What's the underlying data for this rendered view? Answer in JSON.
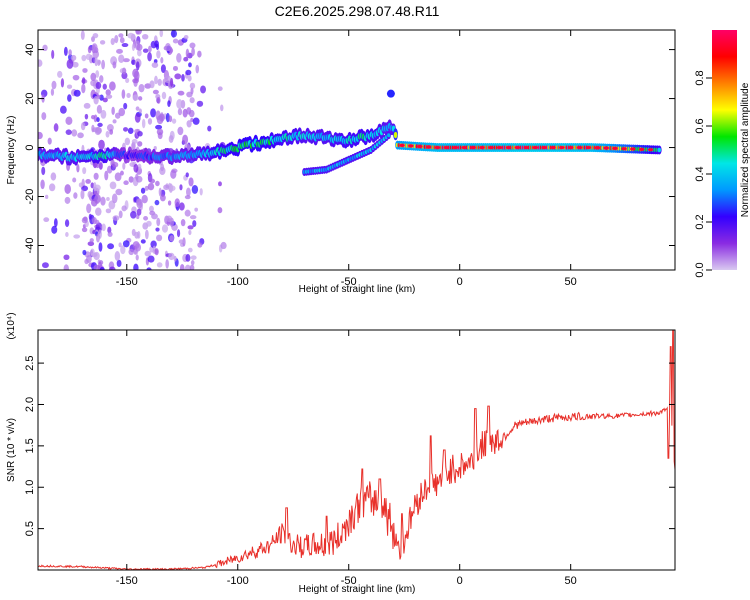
{
  "figure": {
    "title": "C2E6.2025.298.07.48.R11"
  },
  "chart_data": [
    {
      "type": "heatmap",
      "title": "C2E6.2025.298.07.48.R11",
      "xlabel": "Height of straight line (km)",
      "ylabel": "Frequency (Hz)",
      "xlim": [
        -190,
        97
      ],
      "ylim": [
        -50,
        48
      ],
      "x_ticks": [
        -150,
        -100,
        -50,
        0,
        50
      ],
      "y_ticks": [
        -40,
        -20,
        0,
        20,
        40
      ],
      "colorbar": {
        "label": "Normalized spectral amplitude",
        "range": [
          0,
          1
        ],
        "ticks": [
          0.0,
          0.2,
          0.4,
          0.6,
          0.8
        ],
        "tick_labels": [
          "0.0",
          "0.2",
          "0.4",
          "0.6",
          "0.8"
        ],
        "colormap": [
          "#d9c9f0",
          "#8a2be2",
          "#3300ff",
          "#0099ff",
          "#00e6e6",
          "#00e600",
          "#ffff00",
          "#ff8000",
          "#ff0000",
          "#ff0066"
        ]
      },
      "ridge": [
        {
          "x": -190,
          "y": -3,
          "amp": 0.35
        },
        {
          "x": -170,
          "y": -4,
          "amp": 0.4
        },
        {
          "x": -160,
          "y": -3,
          "amp": 0.45
        },
        {
          "x": -150,
          "y": -3,
          "amp": 0.2
        },
        {
          "x": -135,
          "y": -4,
          "amp": 0.3
        },
        {
          "x": -120,
          "y": -3,
          "amp": 0.35
        },
        {
          "x": -110,
          "y": -2,
          "amp": 0.45
        },
        {
          "x": -100,
          "y": 0,
          "amp": 0.5
        },
        {
          "x": -90,
          "y": 2,
          "amp": 0.5
        },
        {
          "x": -80,
          "y": 4,
          "amp": 0.45
        },
        {
          "x": -70,
          "y": 5,
          "amp": 0.4
        },
        {
          "x": -60,
          "y": 4,
          "amp": 0.4
        },
        {
          "x": -50,
          "y": 3,
          "amp": 0.45
        },
        {
          "x": -40,
          "y": 5,
          "amp": 0.45
        },
        {
          "x": -30,
          "y": 9,
          "amp": 0.35
        },
        {
          "x": -28,
          "y": 1,
          "amp": 0.75
        },
        {
          "x": -10,
          "y": 0,
          "amp": 0.85
        },
        {
          "x": 10,
          "y": 0,
          "amp": 0.85
        },
        {
          "x": 30,
          "y": 0,
          "amp": 0.9
        },
        {
          "x": 60,
          "y": 0,
          "amp": 0.85
        },
        {
          "x": 90,
          "y": -1,
          "amp": 0.45
        }
      ],
      "lower_branch": [
        {
          "x": -70,
          "y": -10
        },
        {
          "x": -60,
          "y": -9
        },
        {
          "x": -50,
          "y": -5
        },
        {
          "x": -40,
          "y": -1
        },
        {
          "x": -32,
          "y": 5
        }
      ],
      "isolated_blob": {
        "x": -31,
        "y": 22
      }
    },
    {
      "type": "line",
      "xlabel": "Height of straight line (km)",
      "ylabel": "SNR (10 * v/v)",
      "multiplier_label": "(x10⁴)",
      "xlim": [
        -190,
        97
      ],
      "ylim": [
        0,
        2.9
      ],
      "x_ticks": [
        -150,
        -100,
        -50,
        0,
        50
      ],
      "y_ticks": [
        0.5,
        1.0,
        1.5,
        2.0,
        2.5
      ],
      "series": [
        {
          "color": "#e8302a",
          "x": [
            -190,
            -170,
            -150,
            -130,
            -115,
            -105,
            -95,
            -85,
            -80,
            -75,
            -70,
            -65,
            -60,
            -55,
            -50,
            -45,
            -40,
            -35,
            -30,
            -27,
            -24,
            -20,
            -15,
            -10,
            -5,
            0,
            5,
            10,
            15,
            20,
            25,
            30,
            40,
            50,
            60,
            70,
            80,
            90,
            95,
            97
          ],
          "y": [
            0.05,
            0.04,
            0.01,
            0.01,
            0.03,
            0.1,
            0.2,
            0.3,
            0.45,
            0.3,
            0.28,
            0.3,
            0.3,
            0.38,
            0.6,
            0.8,
            0.85,
            0.8,
            0.5,
            0.25,
            0.45,
            0.8,
            1.0,
            1.05,
            1.2,
            1.25,
            1.3,
            1.5,
            1.55,
            1.6,
            1.75,
            1.78,
            1.83,
            1.85,
            1.86,
            1.86,
            1.88,
            1.9,
            1.95,
            1.2
          ],
          "spikes": [
            {
              "x": -78,
              "y": 0.75
            },
            {
              "x": -60,
              "y": 0.65
            },
            {
              "x": -44,
              "y": 1.22
            },
            {
              "x": -36,
              "y": 1.1
            },
            {
              "x": -26,
              "y": 0.68
            },
            {
              "x": -13,
              "y": 1.62
            },
            {
              "x": -7,
              "y": 1.45
            },
            {
              "x": 7,
              "y": 1.95
            },
            {
              "x": 13,
              "y": 1.98
            },
            {
              "x": 94,
              "y": 1.35
            },
            {
              "x": 95,
              "y": 2.7
            },
            {
              "x": 96,
              "y": 2.9
            }
          ]
        }
      ]
    }
  ]
}
